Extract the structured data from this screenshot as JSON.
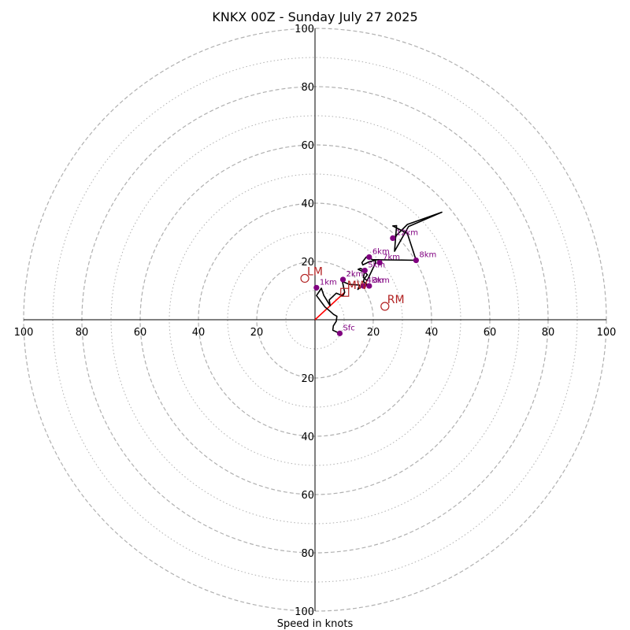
{
  "title": "KNKX 00Z - Sunday July 27 2025",
  "xlabel": "Speed in knots",
  "chart_data": {
    "type": "scatter",
    "subtype": "hodograph",
    "title": "KNKX 00Z - Sunday July 27 2025",
    "xlabel": "Speed in knots",
    "ylabel": "",
    "xlim": [
      -100,
      100
    ],
    "ylim": [
      -100,
      100
    ],
    "ring_major": [
      20,
      40,
      60,
      80,
      100
    ],
    "ring_minor": [
      10,
      30,
      50,
      70,
      90
    ],
    "x_tick_labels": [
      "100",
      "80",
      "60",
      "40",
      "20",
      "20",
      "40",
      "60",
      "80",
      "100"
    ],
    "y_tick_labels": [
      "100",
      "80",
      "60",
      "40",
      "20",
      "20",
      "40",
      "60",
      "80",
      "100"
    ],
    "x_tick_values": [
      -100,
      -80,
      -60,
      -40,
      -20,
      20,
      40,
      60,
      80,
      100
    ],
    "y_tick_values": [
      100,
      80,
      60,
      40,
      20,
      -20,
      -40,
      -60,
      -80,
      -100
    ],
    "grid": true,
    "colors": {
      "trace": "#000000",
      "heights": "#800080",
      "motion": "#b22222",
      "mean_wind_line": "#ff0000",
      "grid": "#b0b0b0"
    },
    "trace": {
      "u": [
        8.5,
        6.1,
        6.3,
        7.3,
        7.5,
        6.4,
        5.2,
        3.4,
        0.5,
        2.2,
        3.0,
        5.2,
        4.9,
        7.3,
        9.6,
        10.2,
        9.4,
        11.9,
        15.3,
        14.7,
        16.8,
        18.6,
        16.6,
        16.9,
        18.0,
        17.2,
        14.8,
        15.6,
        17.1,
        16.6,
        17.9,
        20.8,
        20.7,
        18.6,
        16.4,
        16.1,
        17.6,
        19.8,
        22.2,
        20.4,
        34.7,
        31.7,
        26.7,
        28.0,
        27.3,
        32.1,
        43.5,
        31.7,
        26.9
      ],
      "v": [
        -4.7,
        -3.6,
        -2.1,
        -0.5,
        1.2,
        1.8,
        2.9,
        4.4,
        8.3,
        10.8,
        8.4,
        4.8,
        6.8,
        9.1,
        8.2,
        9.4,
        13.1,
        12.1,
        11.9,
        10.4,
        12.1,
        11.6,
        13.1,
        14.1,
        15.4,
        16.2,
        17.3,
        17.6,
        16.9,
        14.5,
        13.4,
        19.6,
        20.4,
        19.9,
        18.8,
        19.6,
        21.5,
        20.6,
        20.6,
        20.6,
        20.4,
        29.6,
        32.2,
        32.3,
        23.5,
        32.0,
        36.9,
        32.7,
        27.9
      ]
    },
    "height_markers": [
      {
        "label": "Sfc",
        "u": 8.5,
        "v": -4.7
      },
      {
        "label": "1km",
        "u": 0.5,
        "v": 11.0
      },
      {
        "label": "2km",
        "u": 9.6,
        "v": 13.8
      },
      {
        "label": "3km",
        "u": 18.6,
        "v": 11.6
      },
      {
        "label": "4km",
        "u": 16.6,
        "v": 11.6
      },
      {
        "label": "5km",
        "u": 17.1,
        "v": 16.9
      },
      {
        "label": "6km",
        "u": 18.6,
        "v": 21.5
      },
      {
        "label": "7km",
        "u": 22.2,
        "v": 19.6
      },
      {
        "label": "8km",
        "u": 34.7,
        "v": 20.4
      },
      {
        "label": "12km",
        "u": 26.7,
        "v": 28.0
      }
    ],
    "storm_motion": [
      {
        "label": "LM",
        "u": -3.5,
        "v": 14.2,
        "marker": "circle"
      },
      {
        "label": "RM",
        "u": 24.0,
        "v": 4.6,
        "marker": "circle"
      },
      {
        "label": "MW",
        "u": 10.2,
        "v": 9.4,
        "marker": "square"
      }
    ],
    "mean_wind_line": {
      "from": [
        0,
        0
      ],
      "to": [
        10.2,
        9.4
      ]
    }
  }
}
